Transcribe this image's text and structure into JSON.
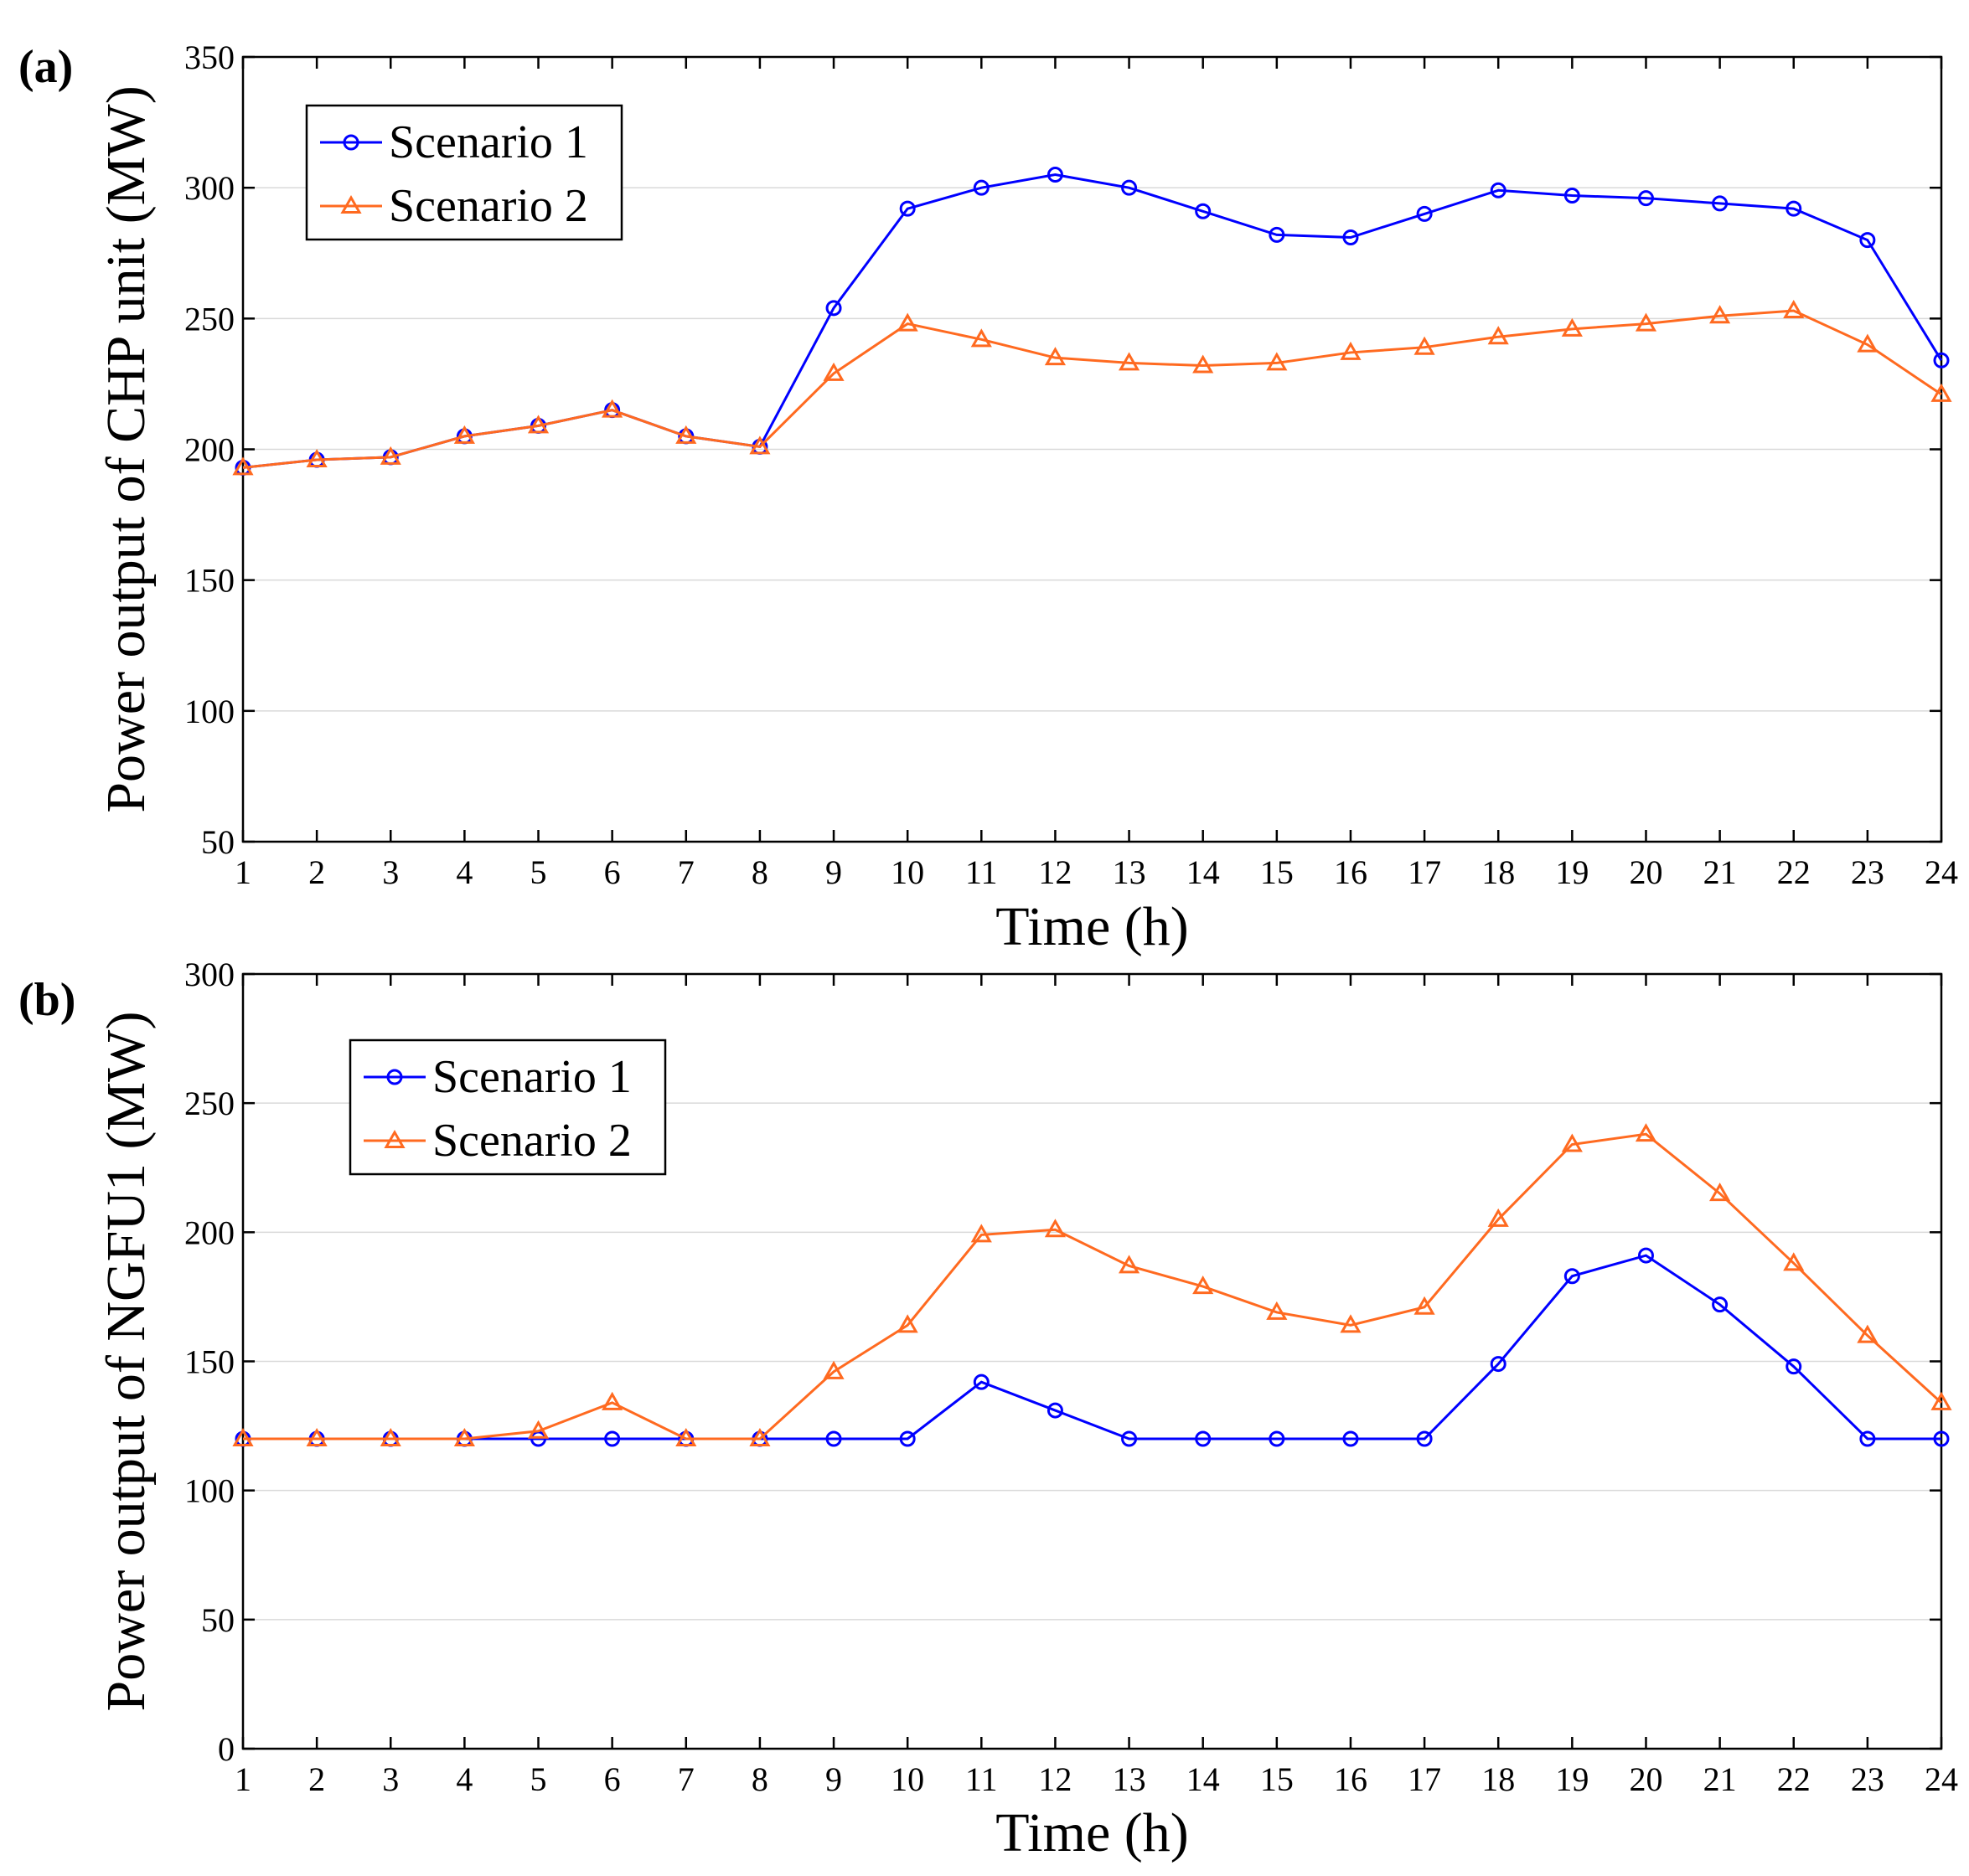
{
  "chart_data": [
    {
      "panel_label": "(a)",
      "type": "line",
      "xlabel": "Time (h)",
      "ylabel": "Power output of CHP unit (MW)",
      "xlim": [
        1,
        24
      ],
      "ylim": [
        50,
        350
      ],
      "x_ticks": [
        "1",
        "2",
        "3",
        "4",
        "5",
        "6",
        "7",
        "8",
        "9",
        "10",
        "11",
        "12",
        "13",
        "14",
        "15",
        "16",
        "17",
        "18",
        "19",
        "20",
        "21",
        "22",
        "23",
        "24"
      ],
      "y_ticks": [
        "50",
        "100",
        "150",
        "200",
        "250",
        "300",
        "350"
      ],
      "grid": true,
      "legend_position": "upper-left",
      "x": [
        1,
        2,
        3,
        4,
        5,
        6,
        7,
        8,
        9,
        10,
        11,
        12,
        13,
        14,
        15,
        16,
        17,
        18,
        19,
        20,
        21,
        22,
        23,
        24
      ],
      "series": [
        {
          "name": "Scenario 1",
          "color": "#0000ff",
          "marker": "circle",
          "values": [
            193,
            196,
            197,
            205,
            209,
            215,
            205,
            201,
            254,
            292,
            300,
            305,
            300,
            291,
            282,
            281,
            290,
            299,
            297,
            296,
            294,
            292,
            280,
            234
          ]
        },
        {
          "name": "Scenario 2",
          "color": "#ff6a20",
          "marker": "triangle",
          "values": [
            193,
            196,
            197,
            205,
            209,
            215,
            205,
            201,
            229,
            248,
            242,
            235,
            233,
            232,
            233,
            237,
            239,
            243,
            246,
            248,
            251,
            253,
            240,
            221
          ]
        }
      ]
    },
    {
      "panel_label": "(b)",
      "type": "line",
      "xlabel": "Time (h)",
      "ylabel": "Power output of NGFU1 (MW)",
      "xlim": [
        1,
        24
      ],
      "ylim": [
        0,
        300
      ],
      "x_ticks": [
        "1",
        "2",
        "3",
        "4",
        "5",
        "6",
        "7",
        "8",
        "9",
        "10",
        "11",
        "12",
        "13",
        "14",
        "15",
        "16",
        "17",
        "18",
        "19",
        "20",
        "21",
        "22",
        "23",
        "24"
      ],
      "y_ticks": [
        "0",
        "50",
        "100",
        "150",
        "200",
        "250",
        "300"
      ],
      "grid": true,
      "legend_position": "upper-left",
      "x": [
        1,
        2,
        3,
        4,
        5,
        6,
        7,
        8,
        9,
        10,
        11,
        12,
        13,
        14,
        15,
        16,
        17,
        18,
        19,
        20,
        21,
        22,
        23,
        24
      ],
      "series": [
        {
          "name": "Scenario 1",
          "color": "#0000ff",
          "marker": "circle",
          "values": [
            120,
            120,
            120,
            120,
            120,
            120,
            120,
            120,
            120,
            120,
            142,
            131,
            120,
            120,
            120,
            120,
            120,
            149,
            183,
            191,
            172,
            148,
            120,
            120
          ]
        },
        {
          "name": "Scenario 2",
          "color": "#ff6a20",
          "marker": "triangle",
          "values": [
            120,
            120,
            120,
            120,
            123,
            134,
            120,
            120,
            146,
            164,
            199,
            201,
            187,
            179,
            169,
            164,
            171,
            205,
            234,
            238,
            215,
            188,
            160,
            134
          ]
        }
      ]
    }
  ]
}
